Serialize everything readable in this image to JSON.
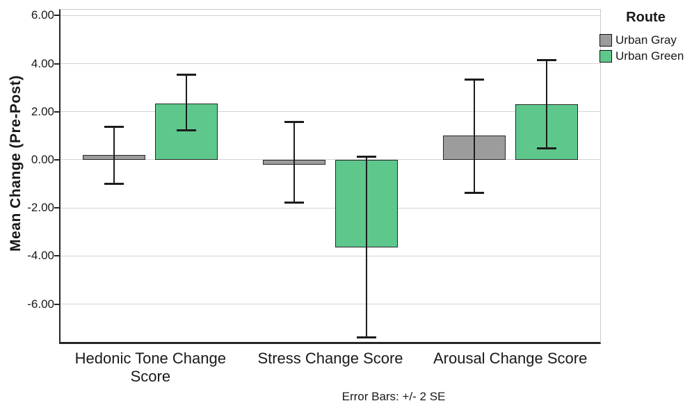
{
  "chart_data": {
    "type": "bar",
    "title": "",
    "xlabel": "",
    "ylabel": "Mean Change (Pre-Post)",
    "footnote": "Error Bars: +/- 2 SE",
    "grid": true,
    "ylim": [
      -7.57,
      6.24
    ],
    "y_ticks": [
      6,
      4,
      2,
      0,
      -2,
      -4,
      -6
    ],
    "y_tick_labels": [
      "6.00",
      "4.00",
      "2.00",
      "0.00",
      "-2.00",
      "-4.00",
      "-6.00"
    ],
    "categories": [
      "Hedonic Tone Change Score",
      "Stress Change Score",
      "Arousal Change Score"
    ],
    "series": [
      {
        "name": "Urban Gray",
        "color": "#9C9C9C",
        "values": [
          0.2,
          -0.2,
          1.0
        ],
        "error_high": [
          1.4,
          1.6,
          3.35
        ],
        "error_low": [
          -1.0,
          -1.8,
          -1.4
        ]
      },
      {
        "name": "Urban Green",
        "color": "#5EC88C",
        "values": [
          2.35,
          -3.65,
          2.3
        ],
        "error_high": [
          3.55,
          0.15,
          4.15
        ],
        "error_low": [
          1.2,
          -7.4,
          0.45
        ]
      }
    ],
    "legend": {
      "title": "Route",
      "position": "top-right",
      "entries": [
        {
          "label": "Urban Gray",
          "color": "#9C9C9C"
        },
        {
          "label": "Urban Green",
          "color": "#5EC88C"
        }
      ]
    },
    "colors": {
      "bar_border": "#262626",
      "gridline": "#D4D4D4",
      "axis": "#262626",
      "frame": "#C9C9C9",
      "error_bar": "#1c1c1c"
    }
  }
}
